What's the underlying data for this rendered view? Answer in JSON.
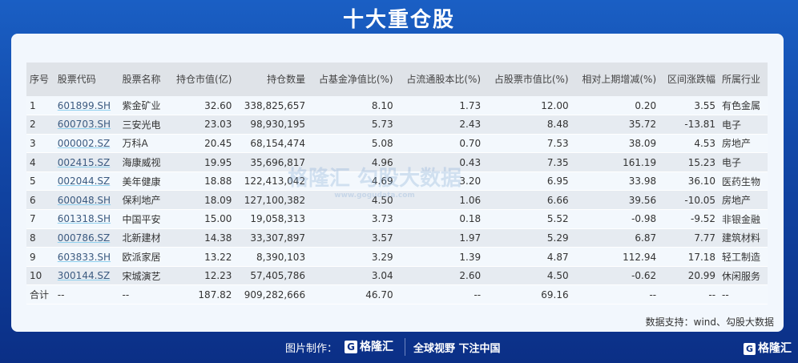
{
  "title": "十大重仓股",
  "headers": [
    "序号",
    "股票代码",
    "股票名称",
    "持仓市值(亿)",
    "持仓数量",
    "占基金净值比(%)",
    "占流通股本比(%)",
    "占股票市值比(%)",
    "相对上期增减(%)",
    "区间涨跌幅",
    "所属行业"
  ],
  "rows": [
    [
      "1",
      "601899.SH",
      "紫金矿业",
      "32.60",
      "338,825,657",
      "8.10",
      "1.73",
      "12.00",
      "0.20",
      "3.55",
      "有色金属"
    ],
    [
      "2",
      "600703.SH",
      "三安光电",
      "23.03",
      "98,930,195",
      "5.73",
      "2.43",
      "8.48",
      "35.72",
      "-13.81",
      "电子"
    ],
    [
      "3",
      "000002.SZ",
      "万科A",
      "20.45",
      "68,154,474",
      "5.08",
      "0.70",
      "7.53",
      "38.09",
      "4.53",
      "房地产"
    ],
    [
      "4",
      "002415.SZ",
      "海康威视",
      "19.95",
      "35,696,817",
      "4.96",
      "0.43",
      "7.35",
      "161.19",
      "15.23",
      "电子"
    ],
    [
      "5",
      "002044.SZ",
      "美年健康",
      "18.88",
      "122,413,042",
      "4.69",
      "3.20",
      "6.95",
      "33.98",
      "36.10",
      "医药生物"
    ],
    [
      "6",
      "600048.SH",
      "保利地产",
      "18.09",
      "127,100,382",
      "4.50",
      "1.06",
      "6.66",
      "39.56",
      "-10.05",
      "房地产"
    ],
    [
      "7",
      "601318.SH",
      "中国平安",
      "15.00",
      "19,058,313",
      "3.73",
      "0.18",
      "5.52",
      "-0.98",
      "-9.52",
      "非银金融"
    ],
    [
      "8",
      "000786.SZ",
      "北新建材",
      "14.38",
      "33,307,897",
      "3.57",
      "1.97",
      "5.29",
      "6.87",
      "7.77",
      "建筑材料"
    ],
    [
      "9",
      "603833.SH",
      "欧派家居",
      "13.22",
      "8,390,103",
      "3.29",
      "1.39",
      "4.87",
      "112.94",
      "17.18",
      "轻工制造"
    ],
    [
      "10",
      "300144.SZ",
      "宋城演艺",
      "12.23",
      "57,405,786",
      "3.04",
      "2.60",
      "4.50",
      "-0.62",
      "20.99",
      "休闲服务"
    ]
  ],
  "total": [
    "合计",
    "--",
    "--",
    "187.82",
    "909,282,666",
    "46.70",
    "--",
    "69.16",
    "--",
    "--",
    "--"
  ],
  "watermark": {
    "text": "格隆汇  勾股大数据",
    "url": "www.gogudata.com"
  },
  "source": "数据支持：wind、勾股大数据",
  "footer": {
    "made_by": "图片制作：",
    "logo": "格隆汇",
    "slogan": "全球视野 下注中国",
    "logo_right": "格隆汇"
  }
}
